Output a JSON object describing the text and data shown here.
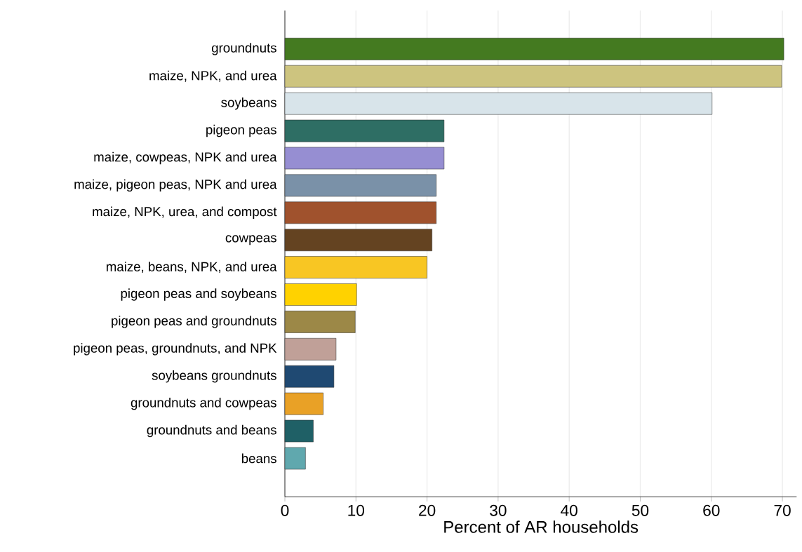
{
  "chart_data": {
    "type": "bar",
    "orientation": "horizontal",
    "xlabel": "Percent of AR households",
    "categories": [
      "groundnuts",
      "maize, NPK, and urea",
      "soybeans",
      "pigeon peas",
      "maize, cowpeas, NPK and urea",
      "maize, pigeon peas, NPK and urea",
      "maize, NPK, urea, and compost",
      "cowpeas",
      "maize, beans, NPK, and urea",
      "pigeon peas and soybeans",
      "pigeon peas and groundnuts",
      "pigeon peas, groundnuts, and NPK",
      "soybeans groundnuts",
      "groundnuts and cowpeas",
      "groundnuts and beans",
      "beans"
    ],
    "values": [
      70.2,
      69.9,
      60.1,
      22.4,
      22.4,
      21.3,
      21.3,
      20.7,
      20.0,
      10.1,
      9.9,
      7.2,
      6.9,
      5.4,
      4.0,
      2.9
    ],
    "colors": [
      "#447a20",
      "#cdc47f",
      "#d8e4ea",
      "#2e6e64",
      "#968ed2",
      "#7a91a8",
      "#a0522d",
      "#644321",
      "#f8c623",
      "#ffd200",
      "#9c8847",
      "#c0a098",
      "#1f4972",
      "#e9a126",
      "#1f6066",
      "#60a8ae"
    ],
    "xlim": [
      0,
      72
    ],
    "xticks": [
      0,
      10,
      20,
      30,
      40,
      50,
      60,
      70
    ],
    "grid": "x"
  }
}
